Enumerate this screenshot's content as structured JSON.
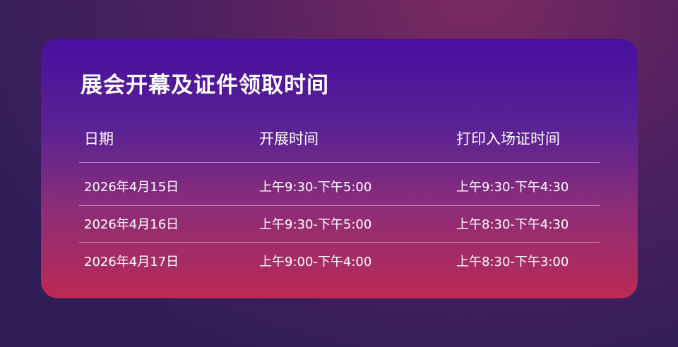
{
  "title": "展会开幕及证件领取时间",
  "table": {
    "headers": [
      "日期",
      "开展时间",
      "打印入场证时间"
    ],
    "rows": [
      [
        "2026年4月15日",
        "上午9:30-下午5:00",
        "上午9:30-下午4:30"
      ],
      [
        "2026年4月16日",
        "上午9:30-下午5:00",
        "上午8:30-下午4:30"
      ],
      [
        "2026年4月17日",
        "上午9:00-下午4:00",
        "上午8:30-下午3:00"
      ]
    ]
  },
  "colors": {
    "card_top": "#480e9f",
    "card_bottom": "#ba2a54",
    "background": "#2f1d58"
  }
}
